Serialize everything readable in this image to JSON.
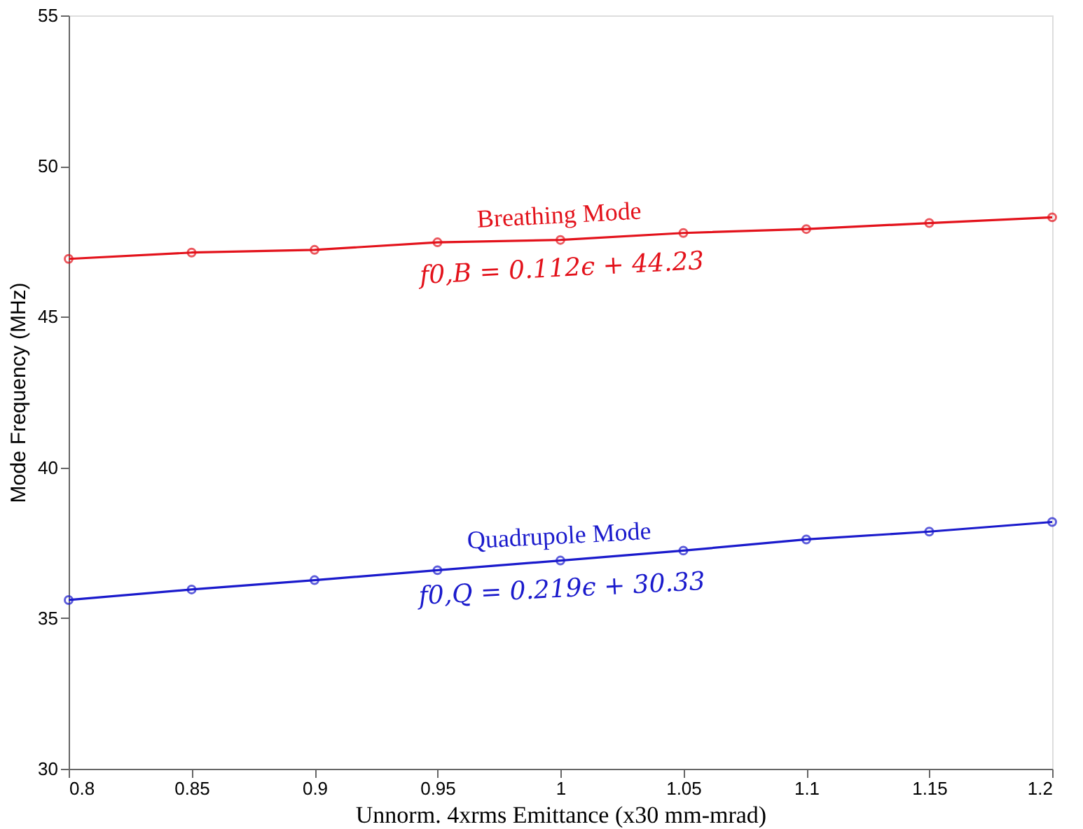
{
  "chart_data": {
    "type": "line",
    "xlabel": "Unnorm. 4xrms Emittance (x30 mm-mrad)",
    "ylabel": "Mode Frequency (MHz)",
    "x": [
      0.8,
      0.85,
      0.9,
      0.95,
      1,
      1.05,
      1.1,
      1.15,
      1.2
    ],
    "series": [
      {
        "name": "Breathing Mode",
        "color": "#e3121b",
        "values": [
          46.92,
          47.13,
          47.22,
          47.47,
          47.55,
          47.78,
          47.91,
          48.11,
          48.3
        ]
      },
      {
        "name": "Quadrupole Mode",
        "color": "#1a1acc",
        "values": [
          35.6,
          35.95,
          36.26,
          36.59,
          36.91,
          37.24,
          37.61,
          37.87,
          38.19
        ]
      }
    ],
    "annotations": [
      "f0,B = 0.112ϵ + 44.23",
      "f0,Q = 0.219ϵ + 30.33"
    ],
    "xlim": [
      0.8,
      1.2
    ],
    "xticks": [
      0.8,
      0.85,
      0.9,
      0.95,
      1,
      1.05,
      1.1,
      1.15,
      1.2
    ],
    "ylim": [
      30,
      55
    ],
    "yticks": [
      30,
      35,
      40,
      45,
      50,
      55
    ],
    "marker": "circle",
    "line_style": "solid",
    "grid": false
  }
}
